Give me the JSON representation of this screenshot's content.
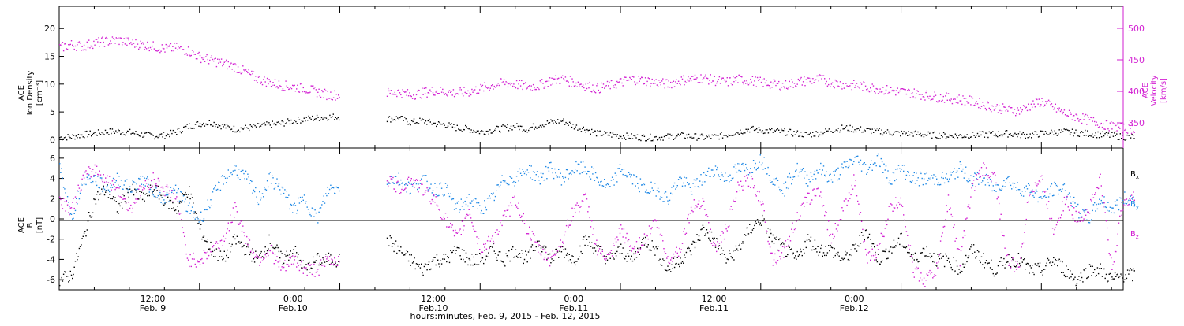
{
  "chart_data": [
    {
      "type": "scatter",
      "panel": "top",
      "ylabel_lines": [
        "ACE",
        "Ion Density",
        "[cm⁻³]"
      ],
      "ylim": [
        -1.5,
        24
      ],
      "yticks": [
        0,
        5,
        10,
        15,
        20
      ],
      "y2label_lines": [
        "ACE",
        "Velocity",
        "[km/s]"
      ],
      "y2lim": [
        310,
        535
      ],
      "y2ticks": [
        350,
        400,
        450,
        500
      ],
      "series": [
        {
          "axis": "left",
          "color": "#000000",
          "x": [
            0,
            1,
            2,
            3,
            4,
            5,
            6,
            7,
            8,
            9,
            10,
            11,
            12,
            13,
            14,
            15,
            16,
            17,
            18,
            19,
            20,
            21,
            22,
            23,
            24,
            25,
            26,
            27,
            28,
            29,
            30,
            31,
            32,
            33,
            34,
            35,
            36,
            37,
            38,
            39,
            40,
            41,
            42,
            43,
            44,
            45,
            46,
            47,
            48,
            49,
            50,
            51,
            52,
            53,
            54,
            55,
            56,
            57,
            58,
            59,
            60,
            61,
            62,
            63,
            64,
            65,
            66,
            67,
            68,
            69,
            70,
            71,
            72,
            73,
            74,
            75,
            76,
            77,
            78,
            79,
            80,
            81,
            82,
            83,
            84,
            85,
            86,
            87,
            88,
            89,
            90,
            91
          ],
          "y": [
            0.5,
            0.6,
            1.0,
            1.2,
            1.5,
            1.6,
            1.4,
            1.0,
            0.8,
            0.9,
            1.5,
            2.5,
            3.0,
            3.2,
            2.5,
            2.0,
            2.2,
            2.5,
            2.8,
            3.0,
            3.5,
            3.8,
            4.0,
            4.2,
            null,
            null,
            null,
            null,
            3.8,
            4.0,
            3.2,
            3.5,
            3.0,
            2.8,
            2.2,
            2.0,
            1.5,
            1.8,
            2.2,
            2.5,
            2.0,
            2.8,
            3.2,
            3.5,
            2.5,
            2.0,
            1.2,
            1.0,
            0.8,
            0.6,
            0.5,
            0.5,
            0.6,
            0.8,
            0.7,
            0.5,
            0.6,
            1.0,
            1.5,
            2.0,
            1.8,
            1.6,
            1.5,
            1.2,
            1.0,
            1.3,
            1.8,
            2.2,
            2.0,
            1.8,
            1.6,
            1.4,
            1.2,
            1.2,
            1.0,
            0.9,
            0.8,
            0.8,
            0.9,
            1.0,
            1.1,
            1.2,
            1.0,
            0.9,
            1.2,
            1.4,
            1.5,
            1.3,
            1.2,
            1.0,
            0.8,
            0.6
          ]
        },
        {
          "axis": "right",
          "color": "#d21fd2",
          "x": [
            0,
            1,
            2,
            3,
            4,
            5,
            6,
            7,
            8,
            9,
            10,
            11,
            12,
            13,
            14,
            15,
            16,
            17,
            18,
            19,
            20,
            21,
            22,
            23,
            24,
            25,
            26,
            27,
            28,
            29,
            30,
            31,
            32,
            33,
            34,
            35,
            36,
            37,
            38,
            39,
            40,
            41,
            42,
            43,
            44,
            45,
            46,
            47,
            48,
            49,
            50,
            51,
            52,
            53,
            54,
            55,
            56,
            57,
            58,
            59,
            60,
            61,
            62,
            63,
            64,
            65,
            66,
            67,
            68,
            69,
            70,
            71,
            72,
            73,
            74,
            75,
            76,
            77,
            78,
            79,
            80,
            81,
            82,
            83,
            84,
            85,
            86,
            87,
            88,
            89,
            90,
            91
          ],
          "y": [
            470,
            475,
            472,
            478,
            480,
            482,
            478,
            475,
            472,
            468,
            470,
            465,
            455,
            450,
            445,
            440,
            430,
            420,
            415,
            410,
            408,
            405,
            400,
            395,
            null,
            null,
            null,
            null,
            398,
            400,
            395,
            398,
            402,
            400,
            398,
            400,
            405,
            410,
            415,
            412,
            408,
            410,
            418,
            420,
            415,
            410,
            405,
            410,
            415,
            420,
            418,
            415,
            412,
            418,
            420,
            422,
            418,
            415,
            420,
            418,
            415,
            412,
            410,
            415,
            418,
            420,
            415,
            412,
            410,
            408,
            405,
            402,
            400,
            398,
            395,
            392,
            390,
            388,
            385,
            380,
            375,
            372,
            370,
            378,
            385,
            375,
            365,
            360,
            355,
            350,
            345,
            342
          ]
        }
      ]
    },
    {
      "type": "scatter",
      "panel": "bottom",
      "ylabel_lines": [
        "ACE",
        "B",
        "[nT]"
      ],
      "ylim": [
        -7,
        7
      ],
      "yticks": [
        -6,
        -4,
        -2,
        0,
        2,
        4,
        6
      ],
      "legend": [
        "Bx",
        "By",
        "Bz"
      ],
      "legend_display": [
        [
          "B",
          "x"
        ],
        [
          "B",
          "y"
        ],
        [
          "B",
          "z"
        ]
      ],
      "legend_placement": "right",
      "series": [
        {
          "name": "Bx",
          "color": "#000000",
          "x": [
            0,
            1,
            2,
            3,
            4,
            5,
            6,
            7,
            8,
            9,
            10,
            11,
            12,
            13,
            14,
            15,
            16,
            17,
            18,
            19,
            20,
            21,
            22,
            23,
            24,
            25,
            26,
            27,
            28,
            29,
            30,
            31,
            32,
            33,
            34,
            35,
            36,
            37,
            38,
            39,
            40,
            41,
            42,
            43,
            44,
            45,
            46,
            47,
            48,
            49,
            50,
            51,
            52,
            53,
            54,
            55,
            56,
            57,
            58,
            59,
            60,
            61,
            62,
            63,
            64,
            65,
            66,
            67,
            68,
            69,
            70,
            71,
            72,
            73,
            74,
            75,
            76,
            77,
            78,
            79,
            80,
            81,
            82,
            83,
            84,
            85,
            86,
            87,
            88,
            89,
            90,
            91
          ],
          "y": [
            -6,
            -5.5,
            -2,
            2,
            3,
            1,
            3,
            2,
            3,
            2,
            1,
            3,
            -1,
            -3,
            -4,
            -2,
            -3,
            -4,
            -2,
            -4,
            -3,
            -5,
            -4,
            -4,
            null,
            null,
            null,
            null,
            -2,
            -3,
            -4,
            -5,
            -4,
            -4,
            -3,
            -4,
            -4,
            -3,
            -4,
            -3,
            -4,
            -2,
            -4,
            -3,
            -4,
            -2,
            -3,
            -4,
            -3,
            -4,
            -2,
            -3,
            -5,
            -4,
            -3,
            -1,
            -2,
            -4,
            -3,
            -1,
            0,
            -2,
            -3,
            -4,
            -2,
            -3,
            -3,
            -4,
            -3,
            -1,
            -4,
            -3,
            -2,
            -4,
            -3,
            -4,
            -4,
            -5,
            -3,
            -4,
            -5,
            -4,
            -4,
            -5,
            -5,
            -4,
            -5,
            -6,
            -5,
            -5,
            -6,
            -5.5
          ]
        },
        {
          "name": "By",
          "color": "#1e88e5",
          "x": [
            0,
            1,
            2,
            3,
            4,
            5,
            6,
            7,
            8,
            9,
            10,
            11,
            12,
            13,
            14,
            15,
            16,
            17,
            18,
            19,
            20,
            21,
            22,
            23,
            24,
            25,
            26,
            27,
            28,
            29,
            30,
            31,
            32,
            33,
            34,
            35,
            36,
            37,
            38,
            39,
            40,
            41,
            42,
            43,
            44,
            45,
            46,
            47,
            48,
            49,
            50,
            51,
            52,
            53,
            54,
            55,
            56,
            57,
            58,
            59,
            60,
            61,
            62,
            63,
            64,
            65,
            66,
            67,
            68,
            69,
            70,
            71,
            72,
            73,
            74,
            75,
            76,
            77,
            78,
            79,
            80,
            81,
            82,
            83,
            84,
            85,
            86,
            87,
            88,
            89,
            90,
            91
          ],
          "y": [
            5.5,
            0,
            4,
            4,
            3,
            4,
            3,
            4,
            3,
            2,
            3,
            1,
            0,
            2,
            4,
            5,
            4,
            2,
            4,
            3,
            1,
            2,
            0,
            3,
            null,
            null,
            null,
            null,
            4,
            4,
            3,
            4,
            3,
            3,
            1,
            2,
            1,
            2,
            4,
            4,
            5,
            4,
            5,
            4,
            5,
            5,
            4,
            3,
            5,
            4,
            3,
            3,
            2,
            4,
            3,
            4,
            5,
            4,
            5,
            5,
            6,
            4,
            3,
            5,
            4,
            5,
            4,
            5,
            6,
            5,
            6,
            4,
            5,
            4,
            4,
            4,
            4,
            5,
            4,
            4,
            3,
            4,
            3,
            3,
            2,
            3,
            3,
            1,
            0,
            2,
            1,
            2
          ]
        },
        {
          "name": "Bz",
          "color": "#d21fd2",
          "x": [
            0,
            1,
            2,
            3,
            4,
            5,
            6,
            7,
            8,
            9,
            10,
            11,
            12,
            13,
            14,
            15,
            16,
            17,
            18,
            19,
            20,
            21,
            22,
            23,
            24,
            25,
            26,
            27,
            28,
            29,
            30,
            31,
            32,
            33,
            34,
            35,
            36,
            37,
            38,
            39,
            40,
            41,
            42,
            43,
            44,
            45,
            46,
            47,
            48,
            49,
            50,
            51,
            52,
            53,
            54,
            55,
            56,
            57,
            58,
            59,
            60,
            61,
            62,
            63,
            64,
            65,
            66,
            67,
            68,
            69,
            70,
            71,
            72,
            73,
            74,
            75,
            76,
            77,
            78,
            79,
            80,
            81,
            82,
            83,
            84,
            85,
            86,
            87,
            88,
            89,
            90,
            91
          ],
          "y": [
            2,
            1,
            4,
            5,
            4,
            3,
            1,
            3,
            4,
            3,
            2,
            -4,
            -4,
            -3,
            -2,
            1,
            -2,
            -4,
            -3,
            -5,
            -4,
            -5,
            -5,
            -4,
            null,
            null,
            null,
            null,
            4,
            3,
            4,
            3,
            2,
            0,
            -2,
            1,
            -3,
            -2,
            0,
            2,
            -1,
            -3,
            -4,
            -2,
            1,
            2,
            -3,
            -4,
            -1,
            -3,
            -2,
            0,
            -4,
            -3,
            1,
            2,
            -3,
            -1,
            3,
            4,
            2,
            -4,
            -3,
            0,
            2,
            3,
            -2,
            1,
            4,
            -4,
            -3,
            1,
            2,
            -5,
            -6,
            -5,
            2,
            -4,
            3,
            5,
            4,
            -4,
            -5,
            3,
            4,
            -1,
            2,
            0,
            1,
            4,
            -5,
            2
          ]
        }
      ]
    }
  ],
  "x_axis": {
    "range_hours": [
      0,
      91
    ],
    "tick_labels": [
      {
        "time": "12:00",
        "date": "Feb. 9"
      },
      {
        "time": "0:00",
        "date": "Feb.10"
      },
      {
        "time": "12:00",
        "date": "Feb.10"
      },
      {
        "time": "0:00",
        "date": "Feb.11"
      },
      {
        "time": "12:00",
        "date": "Feb.11"
      },
      {
        "time": "0:00",
        "date": "Feb.12"
      }
    ],
    "title": "hours:minutes, Feb.  9, 2015 - Feb. 12, 2015"
  }
}
